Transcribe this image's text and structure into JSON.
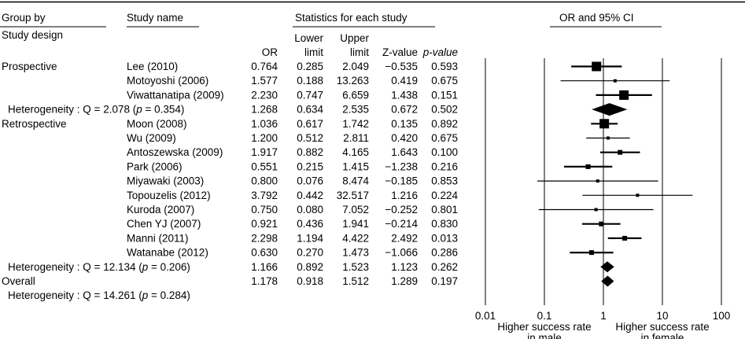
{
  "chart_data": {
    "type": "forest",
    "scale": "log",
    "xlim": [
      0.01,
      100
    ],
    "xticks": [
      {
        "value": 0.01,
        "label": "0.01"
      },
      {
        "value": 0.1,
        "label": "0.1"
      },
      {
        "value": 1,
        "label": "1"
      },
      {
        "value": 10,
        "label": "10"
      },
      {
        "value": 100,
        "label": "100"
      }
    ],
    "xlabel_left": [
      "Higher success rate",
      "in male"
    ],
    "xlabel_right": [
      "Higher success rate",
      "in female"
    ],
    "headers": {
      "group_by": "Group by",
      "study_design": "Study design",
      "study_name": "Study name",
      "statistics": "Statistics for each study",
      "ci": "OR and 95% CI",
      "or": "OR",
      "lower_1": "Lower",
      "lower_2": "limit",
      "upper_1": "Upper",
      "upper_2": "limit",
      "z": "Z-value",
      "p": "p-value"
    },
    "rows": [
      {
        "kind": "study",
        "group": "Prospective",
        "name": "Lee (2010)",
        "or": 0.764,
        "lower": 0.285,
        "upper": 2.049,
        "z": "−0.535",
        "p": "0.593",
        "weight": 3
      },
      {
        "kind": "study",
        "group": "",
        "name": "Motoyoshi (2006)",
        "or": 1.577,
        "lower": 0.188,
        "upper": 13.263,
        "z": "0.419",
        "p": "0.675",
        "weight": 1
      },
      {
        "kind": "study",
        "group": "",
        "name": "Viwattanatipa (2009)",
        "or": 2.23,
        "lower": 0.747,
        "upper": 6.659,
        "z": "1.438",
        "p": "0.151",
        "weight": 3
      },
      {
        "kind": "summary",
        "label": "Heterogeneity : Q = 2.078 (p = 0.354)",
        "or": 1.268,
        "lower": 0.634,
        "upper": 2.535,
        "z": "0.672",
        "p": "0.502"
      },
      {
        "kind": "study",
        "group": "Retrospective",
        "name": "Moon (2008)",
        "or": 1.036,
        "lower": 0.617,
        "upper": 1.742,
        "z": "0.135",
        "p": "0.892",
        "weight": 3
      },
      {
        "kind": "study",
        "group": "",
        "name": "Wu (2009)",
        "or": 1.2,
        "lower": 0.512,
        "upper": 2.811,
        "z": "0.420",
        "p": "0.675",
        "weight": 1
      },
      {
        "kind": "study",
        "group": "",
        "name": "Antoszewska (2009)",
        "or": 1.917,
        "lower": 0.882,
        "upper": 4.165,
        "z": "1.643",
        "p": "0.100",
        "weight": 2
      },
      {
        "kind": "study",
        "group": "",
        "name": "Park (2006)",
        "or": 0.551,
        "lower": 0.215,
        "upper": 1.415,
        "z": "−1.238",
        "p": "0.216",
        "weight": 2
      },
      {
        "kind": "study",
        "group": "",
        "name": "Miyawaki (2003)",
        "or": 0.8,
        "lower": 0.076,
        "upper": 8.474,
        "z": "−0.185",
        "p": "0.853",
        "weight": 1
      },
      {
        "kind": "study",
        "group": "",
        "name": "Topouzelis (2012)",
        "or": 3.792,
        "lower": 0.442,
        "upper": 32.517,
        "z": "1.216",
        "p": "0.224",
        "weight": 1
      },
      {
        "kind": "study",
        "group": "",
        "name": "Kuroda (2007)",
        "or": 0.75,
        "lower": 0.08,
        "upper": 7.052,
        "z": "−0.252",
        "p": "0.801",
        "weight": 1
      },
      {
        "kind": "study",
        "group": "",
        "name": "Chen YJ (2007)",
        "or": 0.921,
        "lower": 0.436,
        "upper": 1.941,
        "z": "−0.214",
        "p": "0.830",
        "weight": 2
      },
      {
        "kind": "study",
        "group": "",
        "name": "Manni (2011)",
        "or": 2.298,
        "lower": 1.194,
        "upper": 4.422,
        "z": "2.492",
        "p": "0.013",
        "weight": 2
      },
      {
        "kind": "study",
        "group": "",
        "name": "Watanabe (2012)",
        "or": 0.63,
        "lower": 0.27,
        "upper": 1.473,
        "z": "−1.066",
        "p": "0.286",
        "weight": 2
      },
      {
        "kind": "summary",
        "label": "Heterogeneity : Q = 12.134 (p = 0.206)",
        "or": 1.166,
        "lower": 0.892,
        "upper": 1.523,
        "z": "1.123",
        "p": "0.262"
      },
      {
        "kind": "overall",
        "label": "Overall",
        "or": 1.178,
        "lower": 0.918,
        "upper": 1.512,
        "z": "1.289",
        "p": "0.197"
      },
      {
        "kind": "note",
        "label": "Heterogeneity : Q = 14.261 (p = 0.284)"
      }
    ]
  }
}
